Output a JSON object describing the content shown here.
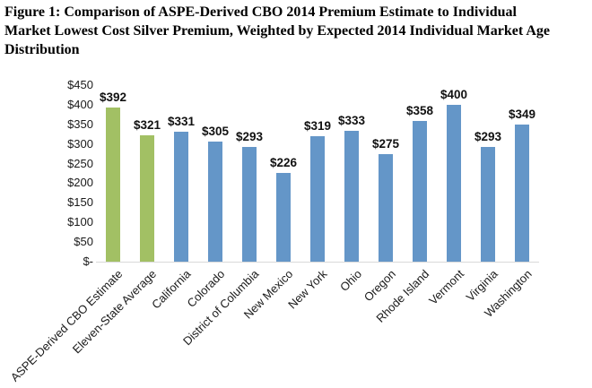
{
  "figure": {
    "title_lines": [
      "Figure 1: Comparison of ASPE-Derived CBO 2014 Premium Estimate to Individual",
      "Market Lowest Cost Silver Premium, Weighted by Expected 2014 Individual Market Age",
      "Distribution"
    ]
  },
  "chart_data": {
    "type": "bar",
    "title": "Figure 1: Comparison of ASPE-Derived CBO 2014 Premium Estimate to Individual Market Lowest Cost Silver Premium, Weighted by Expected 2014 Individual Market Age Distribution",
    "categories": [
      "ASPE-Derived CBO Estimate",
      "Eleven-State Average",
      "California",
      "Colorado",
      "District of Columbia",
      "New Mexico",
      "New York",
      "Ohio",
      "Oregon",
      "Rhode Island",
      "Vermont",
      "Virginia",
      "Washington"
    ],
    "values": [
      392,
      321,
      331,
      305,
      293,
      226,
      319,
      333,
      275,
      358,
      400,
      293,
      349
    ],
    "value_labels": [
      "$392",
      "$321",
      "$331",
      "$305",
      "$293",
      "$226",
      "$319",
      "$333",
      "$275",
      "$358",
      "$400",
      "$293",
      "$349"
    ],
    "bar_groups": [
      "highlight",
      "highlight",
      "default",
      "default",
      "default",
      "default",
      "default",
      "default",
      "default",
      "default",
      "default",
      "default",
      "default"
    ],
    "colors": {
      "highlight": "#a2c064",
      "default": "#6496c8"
    },
    "yticks": {
      "values": [
        0,
        50,
        100,
        150,
        200,
        250,
        300,
        350,
        400,
        450
      ],
      "labels": [
        "$-",
        "$50",
        "$100",
        "$150",
        "$200",
        "$250",
        "$300",
        "$350",
        "$400",
        "$450"
      ]
    },
    "ylim": [
      0,
      450
    ],
    "xlabel": "",
    "ylabel": "",
    "grid": false,
    "legend": "none",
    "x_label_rotation_deg": 45
  }
}
